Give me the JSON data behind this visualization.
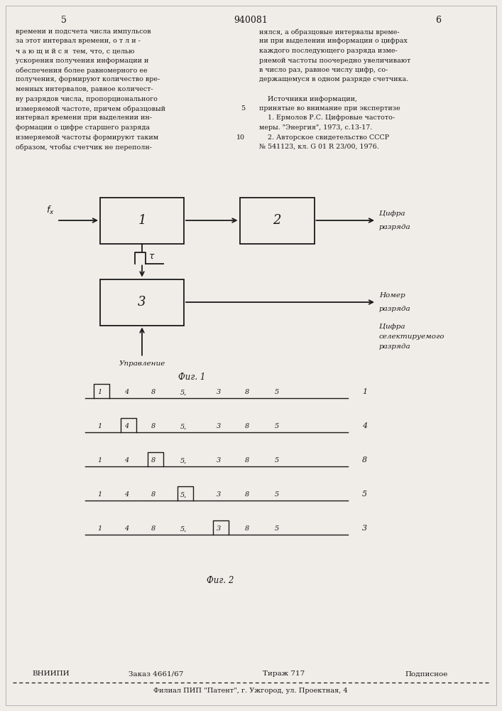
{
  "page_title": "940081",
  "page_num_left": "5",
  "page_num_right": "6",
  "text_left_lines": [
    "времени и подсчета числа импульсов",
    "за этот интервал времени, о т л и -",
    "ч а ю щ и й с я  тем, что, с целью",
    "ускорения получения информации и",
    "обеспечения более равномерного ее",
    "получения, формируют количество вре-",
    "менных интервалов, равное количест-",
    "ву разрядов числа, пропорционального",
    "измеряемой частоте, причем образцовый",
    "интервал времени при выделении ин-",
    "формации о цифре старшего разряда",
    "измеряемой частоты формируют таким",
    "образом, чтобы счетчик не переполн-"
  ],
  "text_right_lines": [
    "нялся, а образцовые интервалы време-",
    "ни при выделении информации о цифрах",
    "каждого последующего разряда изме-",
    "ряемой частоты поочередно увеличивают",
    "в число раз, равное числу цифр, со-",
    "держащемуся в одном разряде счетчика.",
    "",
    "    Источники информации,",
    "принятые во внимание при экспертизе",
    "    1. Ермолов Р.С. Цифровые частото-",
    "меры. \"Энергия\", 1973, с.13-17.",
    "    2. Авторское свидетельство СССР",
    "№ 541123, кл. G 01 R 23/00, 1976."
  ],
  "line_numbers_left": [
    "",
    "",
    "",
    "",
    "",
    "",
    "",
    "",
    "",
    "5",
    "",
    "10",
    ""
  ],
  "fig1_label": "Фиг. 1",
  "fig2_label": "Фиг. 2",
  "footer_left": "ВНИИПИ",
  "footer_order": "Заказ 4661/67",
  "footer_print": "Тираж 717",
  "footer_type": "Подписное",
  "footer_bottom": "Филиал ПИП \"Патент\", г. Ужгород, ул. Проектная, 4",
  "bg_color": "#f0ede8",
  "line_color": "#1a1a1a",
  "text_color": "#1a1a1a",
  "waveform_digits": [
    "1",
    "4",
    "8",
    "5,",
    "3",
    "8",
    "5"
  ],
  "waveform_labels": [
    "1",
    "4",
    "8",
    "5",
    "3"
  ],
  "pulse_positions": [
    0,
    1,
    2,
    3,
    4
  ]
}
